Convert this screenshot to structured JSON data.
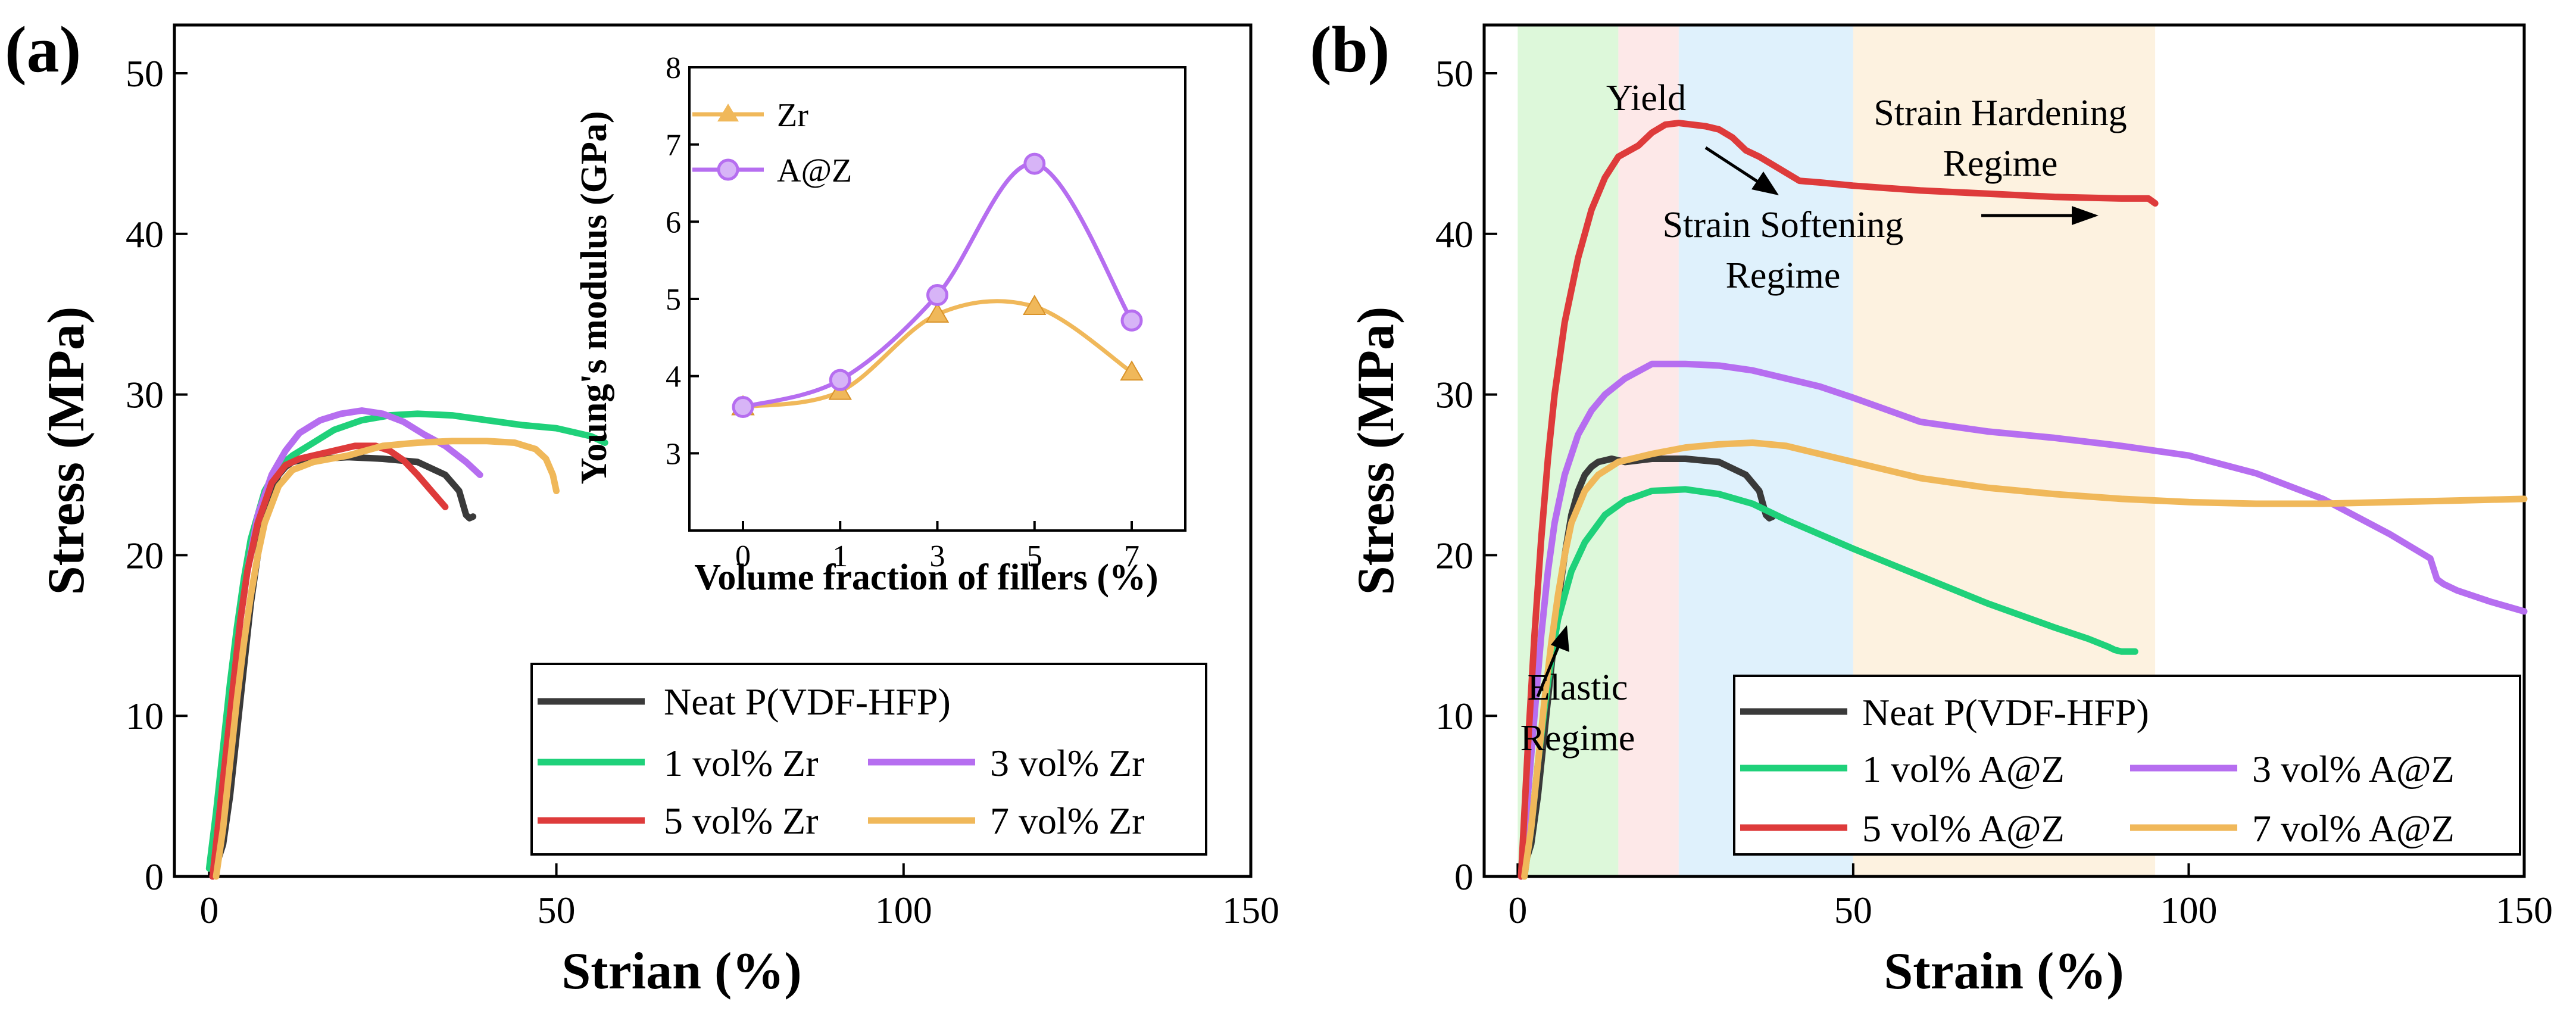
{
  "chart_data": [
    {
      "panel": "(a)",
      "type": "line",
      "xlabel": "Strian (%)",
      "ylabel": "Stress (MPa)",
      "xlim": [
        -5,
        150
      ],
      "ylim": [
        0,
        53
      ],
      "xticks": [
        0,
        50,
        100,
        150
      ],
      "yticks": [
        0,
        10,
        20,
        30,
        40,
        50
      ],
      "legend": {
        "position": "bottom-right",
        "entries": [
          {
            "label": "Neat P(VDF-HFP)",
            "color": "#3a3a3a"
          },
          {
            "label": "1 vol% Zr",
            "color": "#1fd17a"
          },
          {
            "label": "3 vol% Zr",
            "color": "#b66ef0"
          },
          {
            "label": "5 vol% Zr",
            "color": "#de3b3b"
          },
          {
            "label": "7 vol% Zr",
            "color": "#f0b85a"
          }
        ]
      },
      "series": [
        {
          "name": "Neat P(VDF-HFP)",
          "color": "#3a3a3a",
          "x": [
            0.5,
            2,
            3,
            4,
            5,
            6,
            7,
            8,
            9,
            10,
            11,
            12,
            14,
            16,
            20,
            25,
            30,
            34,
            36,
            37,
            37.5,
            38
          ],
          "y": [
            0,
            2,
            5,
            9,
            13,
            17,
            20,
            22.5,
            24,
            25,
            25.5,
            25.8,
            26,
            26,
            26.1,
            26,
            25.8,
            25,
            24,
            22.5,
            22.3,
            22.4
          ]
        },
        {
          "name": "1 vol% Zr",
          "color": "#1fd17a",
          "x": [
            0,
            1,
            2,
            3,
            4,
            5,
            6,
            8,
            10,
            12,
            15,
            18,
            22,
            26,
            30,
            35,
            40,
            45,
            50,
            55,
            57
          ],
          "y": [
            0.5,
            4,
            8,
            12,
            15.5,
            18.5,
            21,
            24,
            25.5,
            26.2,
            27,
            27.8,
            28.4,
            28.7,
            28.8,
            28.7,
            28.4,
            28.1,
            27.9,
            27.4,
            27
          ]
        },
        {
          "name": "3 vol% Zr",
          "color": "#b66ef0",
          "x": [
            0.5,
            1.5,
            2.5,
            3.5,
            4.5,
            5.5,
            7,
            9,
            11,
            13,
            16,
            19,
            22,
            25,
            28,
            31,
            34,
            37,
            39
          ],
          "y": [
            0,
            4,
            8,
            12,
            16,
            19,
            22.5,
            25,
            26.5,
            27.6,
            28.4,
            28.8,
            29,
            28.8,
            28.3,
            27.5,
            26.8,
            25.8,
            25
          ]
        },
        {
          "name": "5 vol% Zr",
          "color": "#de3b3b",
          "x": [
            0.5,
            1.5,
            2.5,
            3.5,
            4.5,
            5.5,
            7,
            9,
            11,
            13,
            15,
            18,
            21,
            24,
            26,
            28,
            30,
            32,
            34
          ],
          "y": [
            0,
            4,
            8,
            12,
            16,
            19,
            22,
            24.5,
            25.6,
            26,
            26.2,
            26.5,
            26.8,
            26.8,
            26.5,
            25.9,
            25,
            24,
            23
          ]
        },
        {
          "name": "7 vol% Zr",
          "color": "#f0b85a",
          "x": [
            1,
            2,
            3,
            4,
            5,
            6,
            7,
            8,
            10,
            12,
            15,
            20,
            25,
            30,
            35,
            40,
            44,
            47,
            48.5,
            49.5,
            50
          ],
          "y": [
            0,
            3,
            7,
            11,
            14.5,
            17.5,
            20,
            22,
            24.3,
            25.3,
            25.8,
            26.2,
            26.8,
            27,
            27.1,
            27.1,
            27,
            26.6,
            26,
            25,
            24
          ]
        }
      ],
      "inset": {
        "type": "line",
        "xlabel": "Volume fraction of fillers (%)",
        "ylabel": "Young's modulus (GPa)",
        "categories": [
          "0",
          "1",
          "3",
          "5",
          "7"
        ],
        "ylim": [
          2,
          8
        ],
        "yticks": [
          3,
          4,
          5,
          6,
          7,
          8
        ],
        "series": [
          {
            "name": "Zr",
            "marker": "triangle",
            "color": "#f0b85a",
            "values": [
              3.6,
              3.8,
              4.8,
              4.9,
              4.05
            ]
          },
          {
            "name": "A@Z",
            "marker": "circle",
            "color": "#b66ef0",
            "values": [
              3.6,
              3.95,
              5.05,
              6.75,
              4.72
            ]
          }
        ]
      }
    },
    {
      "panel": "(b)",
      "type": "line",
      "xlabel": "Strain (%)",
      "ylabel": "Stress (MPa)",
      "xlim": [
        -5,
        150
      ],
      "ylim": [
        0,
        53
      ],
      "xticks": [
        0,
        50,
        100,
        150
      ],
      "yticks": [
        0,
        10,
        20,
        30,
        40,
        50
      ],
      "regions": [
        {
          "x": [
            0,
            15
          ],
          "color": "#d9f7d6"
        },
        {
          "x": [
            15,
            24
          ],
          "color": "#fde6e6"
        },
        {
          "x": [
            24,
            50
          ],
          "color": "#dceffc"
        },
        {
          "x": [
            50,
            95
          ],
          "color": "#fdf1dd"
        }
      ],
      "annotations": {
        "yield": "Yield",
        "strain_hardening_1": "Strain Hardening",
        "strain_hardening_2": "Regime",
        "strain_softening_1": "Strain Softening",
        "strain_softening_2": "Regime",
        "elastic_1": "Elastic",
        "elastic_2": "Regime"
      },
      "legend": {
        "position": "bottom-right",
        "entries": [
          {
            "label": "Neat P(VDF-HFP)",
            "color": "#3a3a3a"
          },
          {
            "label": "1 vol% A@Z",
            "color": "#1fd17a"
          },
          {
            "label": "3 vol% A@Z",
            "color": "#b66ef0"
          },
          {
            "label": "5 vol% A@Z",
            "color": "#de3b3b"
          },
          {
            "label": "7 vol% A@Z",
            "color": "#f0b85a"
          }
        ]
      },
      "series": [
        {
          "name": "Neat P(VDF-HFP)",
          "color": "#3a3a3a",
          "x": [
            0.5,
            2,
            3,
            4,
            5,
            6,
            7,
            8,
            9,
            10,
            11,
            12,
            14,
            16,
            20,
            25,
            30,
            34,
            36,
            37,
            37.5,
            38
          ],
          "y": [
            0,
            2,
            5,
            9,
            13,
            17,
            20,
            22.5,
            24,
            25,
            25.5,
            25.8,
            26,
            25.8,
            26,
            26,
            25.8,
            25,
            24,
            22.5,
            22.3,
            22.4
          ]
        },
        {
          "name": "1 vol% A@Z",
          "color": "#1fd17a",
          "x": [
            1,
            2,
            3,
            4,
            5,
            6,
            8,
            10,
            13,
            16,
            20,
            25,
            30,
            35,
            40,
            50,
            60,
            70,
            80,
            85,
            88,
            89,
            90,
            92
          ],
          "y": [
            0,
            3,
            7,
            10.5,
            13.5,
            16,
            19,
            20.8,
            22.5,
            23.4,
            24,
            24.1,
            23.8,
            23.2,
            22.2,
            20.4,
            18.7,
            17,
            15.5,
            14.8,
            14.3,
            14.1,
            14.0,
            14.0
          ]
        },
        {
          "name": "3 vol% A@Z",
          "color": "#b66ef0",
          "x": [
            0.5,
            1.5,
            2.5,
            3.5,
            4.5,
            5.5,
            7,
            9,
            11,
            13,
            16,
            20,
            25,
            30,
            35,
            40,
            45,
            50,
            60,
            70,
            80,
            90,
            100,
            110,
            120,
            130,
            136,
            137,
            138,
            140,
            145,
            150
          ],
          "y": [
            0,
            5,
            10,
            15,
            19,
            22,
            25,
            27.5,
            29,
            30,
            31,
            31.9,
            31.9,
            31.8,
            31.5,
            31,
            30.5,
            29.8,
            28.3,
            27.7,
            27.3,
            26.8,
            26.2,
            25.1,
            23.5,
            21.3,
            19.8,
            18.5,
            18.2,
            17.8,
            17.1,
            16.5
          ]
        },
        {
          "name": "5 vol% A@Z",
          "color": "#de3b3b",
          "x": [
            0.5,
            1.5,
            2.5,
            3.5,
            4.5,
            5.5,
            7,
            9,
            11,
            13,
            15,
            18,
            20,
            22,
            24,
            26,
            28,
            30,
            32,
            34,
            36,
            38,
            40,
            42,
            45,
            50,
            60,
            70,
            80,
            90,
            94,
            95
          ],
          "y": [
            0,
            8,
            15,
            21,
            26,
            30,
            34.5,
            38.5,
            41.5,
            43.5,
            44.8,
            45.5,
            46.3,
            46.8,
            46.9,
            46.8,
            46.7,
            46.5,
            46,
            45.2,
            44.8,
            44.3,
            43.8,
            43.3,
            43.2,
            43,
            42.7,
            42.5,
            42.3,
            42.2,
            42.2,
            41.9
          ]
        },
        {
          "name": "7 vol% A@Z",
          "color": "#f0b85a",
          "x": [
            1,
            2,
            3,
            4,
            5,
            6,
            7,
            8,
            10,
            12,
            15,
            20,
            25,
            30,
            35,
            40,
            45,
            50,
            60,
            70,
            80,
            90,
            100,
            110,
            120,
            130,
            140,
            150
          ],
          "y": [
            0,
            3,
            7,
            11,
            14.5,
            17.5,
            20,
            22,
            24,
            25,
            25.8,
            26.3,
            26.7,
            26.9,
            27,
            26.8,
            26.3,
            25.8,
            24.8,
            24.2,
            23.8,
            23.5,
            23.3,
            23.2,
            23.2,
            23.3,
            23.4,
            23.5
          ]
        }
      ]
    }
  ]
}
